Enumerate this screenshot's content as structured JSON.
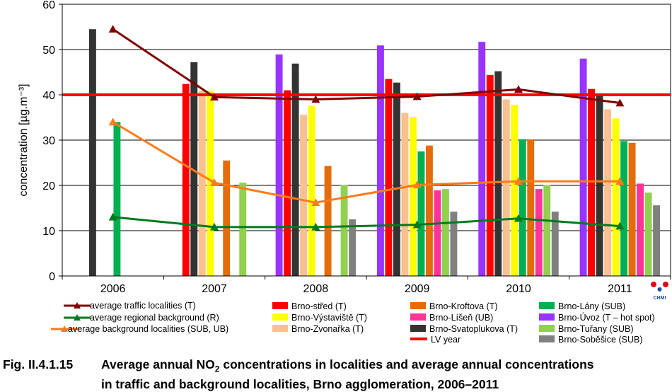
{
  "chart_data": {
    "type": "bar",
    "categories": [
      "2006",
      "2007",
      "2008",
      "2009",
      "2010",
      "2011"
    ],
    "ylabel": "concentration [µg.m⁻³]",
    "ylim": [
      0,
      60
    ],
    "yticks": [
      0,
      10,
      20,
      30,
      40,
      50,
      60
    ],
    "grid": "horizontal",
    "legend_position": "bottom",
    "limit_value": 40,
    "series": [
      {
        "name": "Brno-Úvoz (T – hot spot)",
        "color": "#9933ff",
        "values": [
          null,
          null,
          48.9,
          50.9,
          51.7,
          48.0
        ]
      },
      {
        "name": "Brno-střed (T)",
        "color": "#ff0000",
        "values": [
          null,
          42.4,
          41.0,
          43.5,
          44.4,
          41.3
        ]
      },
      {
        "name": "Brno-Svatoplukova (T)",
        "color": "#333333",
        "values": [
          54.5,
          47.2,
          46.9,
          42.7,
          45.2,
          39.8
        ]
      },
      {
        "name": "Brno-Zvonařka  (T)",
        "color": "#fac090",
        "values": [
          null,
          40.9,
          35.6,
          36.0,
          39.0,
          36.8
        ]
      },
      {
        "name": "Brno-Výstaviště  (T)",
        "color": "#ffff00",
        "values": [
          null,
          40.9,
          37.6,
          35.1,
          37.8,
          34.8
        ]
      },
      {
        "name": "Brno-Lány (SUB)",
        "color": "#00b050",
        "values": [
          34.0,
          null,
          null,
          27.5,
          30.2,
          29.8
        ]
      },
      {
        "name": "Brno-Kroftova (T)",
        "color": "#e46c0a",
        "values": [
          null,
          25.5,
          24.3,
          28.8,
          30.0,
          29.4
        ]
      },
      {
        "name": "Brno-Líšeň (UB)",
        "color": "#ff3399",
        "values": [
          null,
          null,
          null,
          18.9,
          19.2,
          20.4
        ]
      },
      {
        "name": "Brno-Tuřany (SUB)",
        "color": "#92d050",
        "values": [
          null,
          20.6,
          20.1,
          19.2,
          20.1,
          18.4
        ]
      },
      {
        "name": "Brno-Soběšice (SUB)",
        "color": "#808080",
        "values": [
          null,
          null,
          12.5,
          14.2,
          14.2,
          15.6
        ]
      }
    ],
    "lines": [
      {
        "name": "average traffic localities (T)",
        "color": "#800000",
        "marker": "triangle",
        "values": [
          54.5,
          39.5,
          39.0,
          39.6,
          41.2,
          38.2
        ]
      },
      {
        "name": "average regional background (R)",
        "color": "#007a1f",
        "marker": "triangle",
        "values": [
          13.0,
          10.8,
          10.8,
          11.3,
          12.7,
          11.0
        ]
      },
      {
        "name": "average background localities (SUB, UB)",
        "color": "#ff7a1a",
        "marker": "triangle",
        "values": [
          34.0,
          20.6,
          16.2,
          20.1,
          20.9,
          20.9
        ]
      }
    ],
    "limit_line": {
      "name": "LV year",
      "color": "#ff0000",
      "value": 40
    }
  },
  "logo": {
    "text": "CHMI"
  },
  "caption": {
    "number": "Fig. II.4.1.15",
    "line1_prefix": "Average annual NO",
    "line1_sub": "2",
    "line1_suffix": " concentrations in localities and average annual concentrations",
    "line2": "in traffic and background localities, Brno agglomeration, 2006–2011"
  }
}
